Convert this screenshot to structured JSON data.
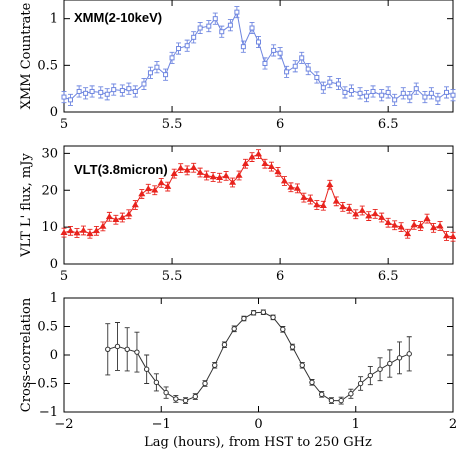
{
  "chart_data": [
    {
      "type": "scatter",
      "panel_label": "XMM(2-10keV)",
      "ylabel": "XMM Countrate",
      "xlim": [
        5,
        6.8
      ],
      "ylim": [
        0,
        1.2
      ],
      "xticks": [
        "5",
        "5.5",
        "6",
        "6.5"
      ],
      "xtick_values": [
        5,
        5.5,
        6,
        6.5
      ],
      "yticks": [
        "0",
        "0.5",
        "1"
      ],
      "ytick_values": [
        0,
        0.5,
        1
      ],
      "color": "#6f86e0",
      "marker": "square-open",
      "x": [
        5.0,
        5.03,
        5.07,
        5.1,
        5.13,
        5.17,
        5.2,
        5.23,
        5.27,
        5.3,
        5.33,
        5.37,
        5.4,
        5.43,
        5.47,
        5.5,
        5.53,
        5.57,
        5.6,
        5.63,
        5.67,
        5.7,
        5.73,
        5.77,
        5.8,
        5.83,
        5.87,
        5.9,
        5.93,
        5.97,
        6.0,
        6.03,
        6.07,
        6.1,
        6.13,
        6.17,
        6.2,
        6.23,
        6.27,
        6.3,
        6.33,
        6.37,
        6.4,
        6.43,
        6.47,
        6.5,
        6.53,
        6.57,
        6.6,
        6.63,
        6.67,
        6.7,
        6.73,
        6.77,
        6.8
      ],
      "y": [
        0.16,
        0.13,
        0.22,
        0.2,
        0.22,
        0.21,
        0.19,
        0.24,
        0.23,
        0.25,
        0.22,
        0.3,
        0.42,
        0.48,
        0.4,
        0.58,
        0.68,
        0.71,
        0.8,
        0.9,
        0.92,
        1.0,
        0.86,
        0.93,
        1.07,
        0.7,
        0.9,
        0.75,
        0.52,
        0.66,
        0.63,
        0.43,
        0.49,
        0.58,
        0.46,
        0.37,
        0.26,
        0.32,
        0.3,
        0.21,
        0.23,
        0.2,
        0.17,
        0.22,
        0.18,
        0.21,
        0.13,
        0.2,
        0.16,
        0.25,
        0.16,
        0.2,
        0.14,
        0.21,
        0.18
      ],
      "yerr": 0.06
    },
    {
      "type": "scatter",
      "panel_label": "VLT(3.8micron)",
      "ylabel": "VLT L' flux, mJy",
      "xlim": [
        5,
        6.8
      ],
      "ylim": [
        0,
        32
      ],
      "xticks": [
        "5",
        "5.5",
        "6",
        "6.5"
      ],
      "xtick_values": [
        5,
        5.5,
        6,
        6.5
      ],
      "yticks": [
        "0",
        "10",
        "20",
        "30"
      ],
      "ytick_values": [
        0,
        10,
        20,
        30
      ],
      "color": "#e8231d",
      "marker": "triangle",
      "x": [
        5.0,
        5.03,
        5.06,
        5.09,
        5.12,
        5.15,
        5.18,
        5.21,
        5.24,
        5.27,
        5.3,
        5.33,
        5.36,
        5.39,
        5.42,
        5.45,
        5.48,
        5.51,
        5.54,
        5.57,
        5.6,
        5.63,
        5.66,
        5.69,
        5.72,
        5.75,
        5.78,
        5.81,
        5.84,
        5.87,
        5.9,
        5.93,
        5.96,
        5.99,
        6.02,
        6.05,
        6.08,
        6.11,
        6.14,
        6.17,
        6.2,
        6.23,
        6.26,
        6.29,
        6.32,
        6.35,
        6.38,
        6.41,
        6.44,
        6.47,
        6.5,
        6.53,
        6.56,
        6.59,
        6.62,
        6.65,
        6.68,
        6.71,
        6.74,
        6.77,
        6.8
      ],
      "y": [
        8.5,
        9.0,
        8.4,
        9.1,
        8.2,
        9.0,
        10.2,
        12.8,
        12.0,
        12.6,
        13.5,
        16.0,
        19.0,
        20.4,
        20.0,
        22.0,
        21.0,
        24.5,
        26.0,
        25.4,
        26.1,
        24.8,
        24.0,
        23.6,
        23.4,
        23.9,
        22.1,
        24.0,
        27.2,
        29.0,
        29.8,
        27.2,
        26.4,
        25.0,
        22.5,
        20.8,
        20.5,
        18.0,
        17.5,
        16.0,
        15.8,
        21.5,
        17.0,
        15.5,
        15.0,
        13.5,
        14.5,
        13.0,
        13.6,
        12.6,
        11.2,
        10.5,
        10.0,
        8.2,
        10.6,
        10.3,
        12.3,
        9.8,
        10.3,
        7.6,
        7.4
      ],
      "yerr": 1.2
    },
    {
      "type": "scatter",
      "ylabel": "Cross-correlation",
      "xlabel": "Lag (hours), from HST to 250 GHz",
      "xlim": [
        -2,
        2
      ],
      "ylim": [
        -1,
        1
      ],
      "xticks": [
        "−2",
        "−1",
        "0",
        "1",
        "2"
      ],
      "xtick_values": [
        -2,
        -1,
        0,
        1,
        2
      ],
      "yticks": [
        "−1",
        "−0.5",
        "0",
        "0.5",
        "1"
      ],
      "ytick_values": [
        -1,
        -0.5,
        0,
        0.5,
        1
      ],
      "color": "#333333",
      "marker": "circle-open",
      "x": [
        -1.55,
        -1.45,
        -1.35,
        -1.25,
        -1.15,
        -1.05,
        -0.95,
        -0.85,
        -0.75,
        -0.65,
        -0.55,
        -0.45,
        -0.35,
        -0.25,
        -0.15,
        -0.05,
        0.05,
        0.15,
        0.25,
        0.35,
        0.45,
        0.55,
        0.65,
        0.75,
        0.85,
        0.95,
        1.05,
        1.15,
        1.25,
        1.35,
        1.45,
        1.55
      ],
      "y": [
        0.1,
        0.15,
        0.1,
        0.05,
        -0.25,
        -0.48,
        -0.66,
        -0.77,
        -0.8,
        -0.73,
        -0.5,
        -0.18,
        0.18,
        0.46,
        0.64,
        0.74,
        0.75,
        0.66,
        0.45,
        0.14,
        -0.18,
        -0.48,
        -0.69,
        -0.8,
        -0.8,
        -0.68,
        -0.5,
        -0.36,
        -0.25,
        -0.15,
        -0.05,
        0.02
      ],
      "yerr": [
        0.45,
        0.42,
        0.38,
        0.35,
        0.25,
        0.15,
        0.1,
        0.06,
        0.05,
        0.05,
        0.05,
        0.05,
        0.05,
        0.05,
        0.04,
        0.04,
        0.04,
        0.04,
        0.05,
        0.05,
        0.05,
        0.05,
        0.05,
        0.05,
        0.06,
        0.08,
        0.12,
        0.16,
        0.2,
        0.24,
        0.28,
        0.3
      ]
    }
  ]
}
